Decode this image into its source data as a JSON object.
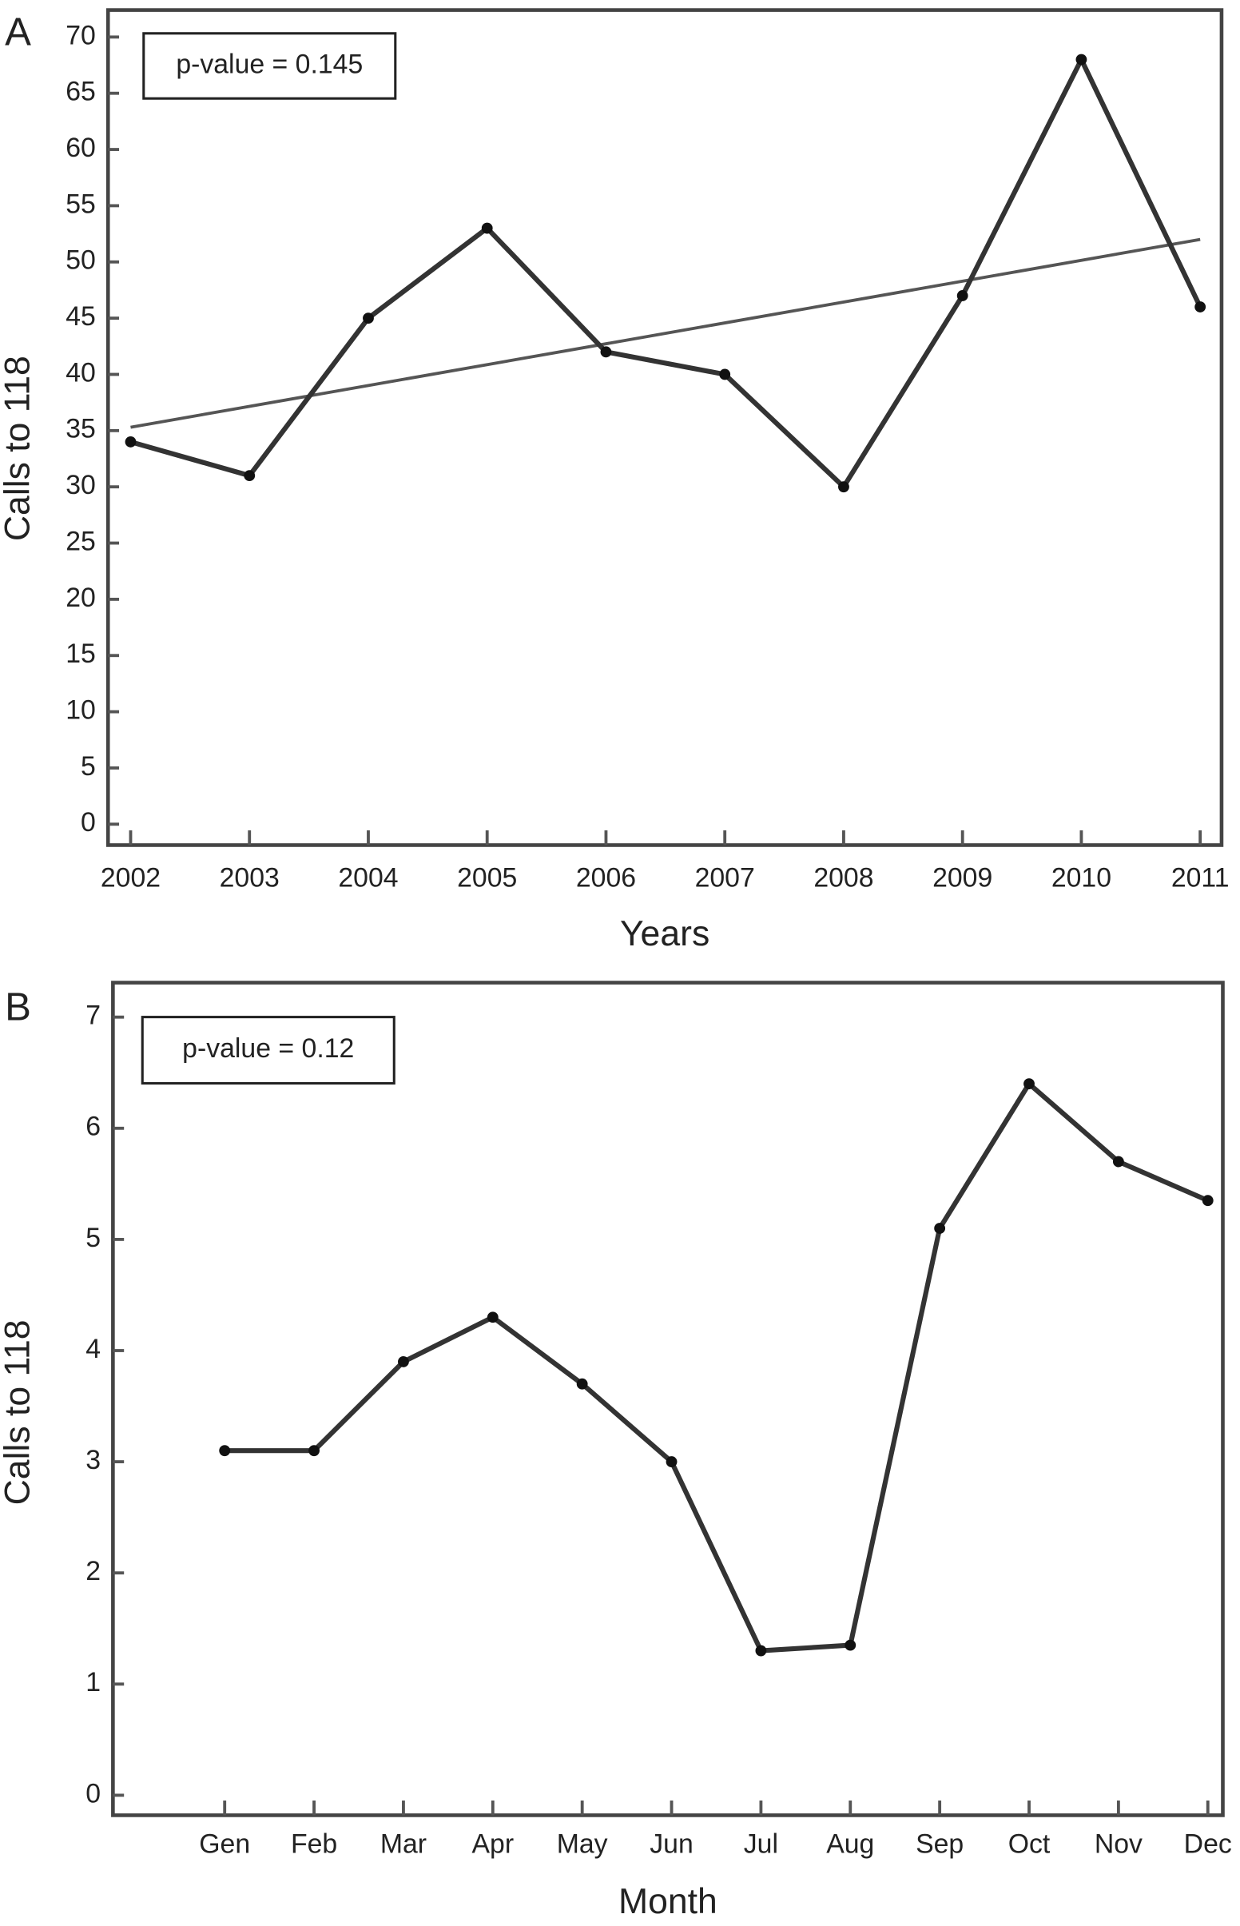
{
  "chart_data": [
    {
      "type": "line",
      "panel_label": "A",
      "annotation": "p-value = 0.145",
      "x_label": "Years",
      "y_label": "Calls to 118",
      "x": [
        2002,
        2003,
        2004,
        2005,
        2006,
        2007,
        2008,
        2009,
        2010,
        2011
      ],
      "series": [
        {
          "color": "#333333",
          "values": [
            34,
            31,
            45,
            53,
            42,
            40,
            30,
            47,
            68,
            46
          ]
        }
      ],
      "trendline": {
        "x": [
          2002,
          2011
        ],
        "y": [
          35.3,
          52
        ],
        "color": "#555555"
      },
      "xlim": [
        2001.81,
        2011.18
      ],
      "ylim": [
        -1.86,
        72.4
      ],
      "xticks": [
        2002,
        2003,
        2004,
        2005,
        2006,
        2007,
        2008,
        2009,
        2010,
        2011
      ],
      "yticks": [
        0,
        5,
        10,
        15,
        20,
        25,
        30,
        35,
        40,
        45,
        50,
        55,
        60,
        65,
        70
      ],
      "grid": false
    },
    {
      "type": "line",
      "panel_label": "B",
      "annotation": "p-value = 0.12",
      "x_label": "Month",
      "y_label": "Calls to 118",
      "categories": [
        "Gen",
        "Feb",
        "Mar",
        "Apr",
        "May",
        "Jun",
        "Jul",
        "Aug",
        "Sep",
        "Oct",
        "Nov",
        "Dec"
      ],
      "series": [
        {
          "color": "#333333",
          "values": [
            3.1,
            3.1,
            3.9,
            4.3,
            3.7,
            3.0,
            1.3,
            1.35,
            5.1,
            6.4,
            5.7,
            5.35
          ]
        }
      ],
      "ylim": [
        -0.18,
        7.31
      ],
      "yticks": [
        0,
        1,
        2,
        3,
        4,
        5,
        6,
        7
      ],
      "grid": false
    }
  ]
}
